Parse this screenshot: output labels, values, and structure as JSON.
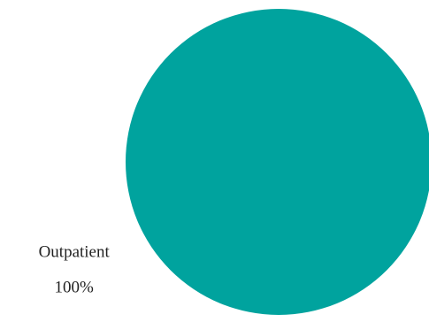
{
  "chart_data": {
    "type": "pie",
    "categories": [
      "Outpatient"
    ],
    "values": [
      100
    ],
    "value_labels": [
      "100%"
    ],
    "colors": [
      "#00a39e"
    ]
  }
}
